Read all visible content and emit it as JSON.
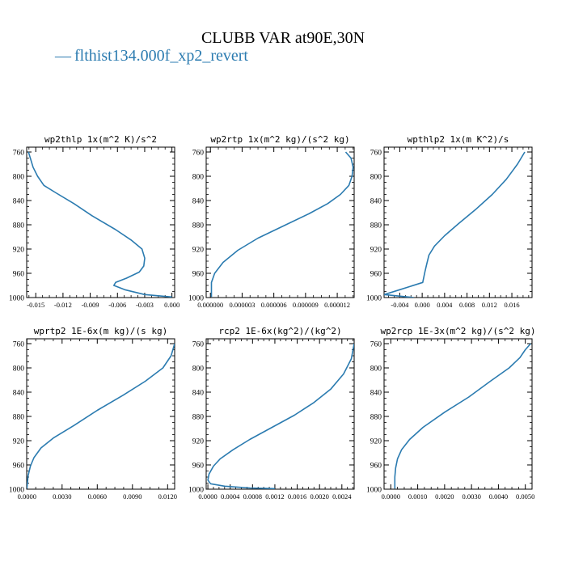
{
  "title": "CLUBB VAR at90E,30N",
  "legend": {
    "dash": "—",
    "label": "flthist134.000f_xp2_revert",
    "color": "#2b7bb0"
  },
  "chart_data": [
    {
      "type": "line",
      "title": "wp2thlp  1x(m^2 K)/s^2",
      "xlim": [
        -0.016,
        0.0003
      ],
      "ylim": [
        1000,
        752
      ],
      "xticks": [
        -0.015,
        -0.012,
        -0.009,
        -0.006,
        -0.003,
        0.0
      ],
      "xtick_labels": [
        "-0.015",
        "-0.012",
        "-0.009",
        "-0.006",
        "-0.003",
        "0.000"
      ],
      "yticks": [
        760,
        800,
        840,
        880,
        920,
        960,
        1000
      ],
      "ytick_labels": [
        "760",
        "800",
        "840",
        "880",
        "920",
        "960",
        "1000"
      ],
      "series": [
        {
          "x": [
            -0.0158,
            -0.0156,
            -0.0153,
            -0.0148,
            -0.0141,
            -0.0127,
            -0.0108,
            -0.0088,
            -0.0062,
            -0.0045,
            -0.0033,
            -0.003,
            -0.0031,
            -0.0036,
            -0.005,
            -0.0062,
            -0.0064,
            -0.0052,
            -0.003,
            0.0
          ],
          "y": [
            760,
            770,
            785,
            800,
            815,
            828,
            845,
            865,
            888,
            905,
            920,
            935,
            948,
            958,
            968,
            975,
            980,
            987,
            995,
            999
          ]
        }
      ]
    },
    {
      "type": "line",
      "title": "wp2rtp  1x(m^2 kg)/(s^2 kg)",
      "xlim": [
        -4e-07,
        1.36e-05
      ],
      "ylim": [
        1000,
        752
      ],
      "xticks": [
        0.0,
        3e-06,
        6e-06,
        9e-06,
        1.2e-05
      ],
      "xtick_labels": [
        "0.000000",
        "0.000003",
        "0.000006",
        "0.000009",
        "0.000012"
      ],
      "yticks": [
        760,
        800,
        840,
        880,
        920,
        960,
        1000
      ],
      "ytick_labels": [
        "760",
        "800",
        "840",
        "880",
        "920",
        "960",
        "1000"
      ],
      "series": [
        {
          "x": [
            1.28e-05,
            1.33e-05,
            1.35e-05,
            1.34e-05,
            1.31e-05,
            1.23e-05,
            1.11e-05,
            9.3e-06,
            6.9e-06,
            4.5e-06,
            2.6e-06,
            1.2e-06,
            4e-07,
            1e-07,
            1e-07
          ],
          "y": [
            760,
            770,
            785,
            800,
            815,
            830,
            845,
            862,
            882,
            902,
            922,
            942,
            960,
            975,
            999
          ]
        }
      ]
    },
    {
      "type": "line",
      "title": "wpthlp2  1x(m K^2)/s",
      "xlim": [
        -0.0068,
        0.0196
      ],
      "ylim": [
        1000,
        752
      ],
      "xticks": [
        -0.004,
        0.0,
        0.004,
        0.008,
        0.012,
        0.016
      ],
      "xtick_labels": [
        "-0.004",
        "0.000",
        "0.004",
        "0.008",
        "0.012",
        "0.016"
      ],
      "yticks": [
        760,
        800,
        840,
        880,
        920,
        960,
        1000
      ],
      "ytick_labels": [
        "760",
        "800",
        "840",
        "880",
        "920",
        "960",
        "1000"
      ],
      "series": [
        {
          "x": [
            0.0183,
            0.017,
            0.015,
            0.0125,
            0.0095,
            0.0065,
            0.004,
            0.0022,
            0.0012,
            0.0008,
            0.0005,
            0.0001,
            -0.004,
            -0.0068,
            -0.0015
          ],
          "y": [
            760,
            780,
            805,
            830,
            855,
            878,
            898,
            915,
            930,
            945,
            957,
            975,
            987,
            995,
            1000
          ]
        }
      ]
    },
    {
      "type": "line",
      "title": "wprtp2  1E-6x(m kg)/(s kg)",
      "xlim": [
        -2e-05,
        0.0126
      ],
      "ylim": [
        1000,
        752
      ],
      "xticks": [
        0.0,
        0.003,
        0.006,
        0.009,
        0.012
      ],
      "xtick_labels": [
        "0.0000",
        "0.0030",
        "0.0060",
        "0.0090",
        "0.0120"
      ],
      "yticks": [
        760,
        800,
        840,
        880,
        920,
        960,
        1000
      ],
      "ytick_labels": [
        "760",
        "800",
        "840",
        "880",
        "920",
        "960",
        "1000"
      ],
      "series": [
        {
          "x": [
            0.0126,
            0.0123,
            0.0116,
            0.0101,
            0.0082,
            0.006,
            0.004,
            0.0023,
            0.0012,
            0.0006,
            0.0003,
            0.0001,
            0.0
          ],
          "y": [
            760,
            780,
            800,
            822,
            845,
            870,
            895,
            915,
            932,
            948,
            962,
            978,
            999
          ]
        }
      ]
    },
    {
      "type": "line",
      "title": "rcp2  1E-6x(kg^2)/(kg^2)",
      "xlim": [
        -3e-05,
        0.00262
      ],
      "ylim": [
        1000,
        752
      ],
      "xticks": [
        0.0,
        0.0004,
        0.0008,
        0.0012,
        0.0016,
        0.002,
        0.0024
      ],
      "xtick_labels": [
        "0.0000",
        "0.0004",
        "0.0008",
        "0.0012",
        "0.0016",
        "0.0020",
        "0.0024"
      ],
      "yticks": [
        760,
        800,
        840,
        880,
        920,
        960,
        1000
      ],
      "ytick_labels": [
        "760",
        "800",
        "840",
        "880",
        "920",
        "960",
        "1000"
      ],
      "series": [
        {
          "x": [
            0.00262,
            0.00257,
            0.00243,
            0.0022,
            0.0019,
            0.00155,
            0.00115,
            0.00075,
            0.00045,
            0.00022,
            0.0001,
            2e-05,
            0.0,
            5e-05,
            0.0003,
            0.00075,
            0.0012
          ],
          "y": [
            760,
            785,
            810,
            835,
            857,
            878,
            898,
            918,
            935,
            950,
            962,
            975,
            985,
            991,
            995,
            998,
            999
          ]
        }
      ]
    },
    {
      "type": "line",
      "title": "wp2rcp  1E-3x(m^2 kg)/(s^2 kg)",
      "xlim": [
        -0.00025,
        0.00525
      ],
      "ylim": [
        1000,
        752
      ],
      "xticks": [
        0.0,
        0.001,
        0.002,
        0.003,
        0.004,
        0.005
      ],
      "xtick_labels": [
        "0.0000",
        "0.0010",
        "0.0020",
        "0.0030",
        "0.0040",
        "0.0050"
      ],
      "yticks": [
        760,
        800,
        840,
        880,
        920,
        960,
        1000
      ],
      "ytick_labels": [
        "760",
        "800",
        "840",
        "880",
        "920",
        "960",
        "1000"
      ],
      "series": [
        {
          "x": [
            0.0052,
            0.005,
            0.0048,
            0.0044,
            0.0037,
            0.0029,
            0.002,
            0.0012,
            0.0007,
            0.0004,
            0.00025,
            0.00018,
            0.00015,
            0.00015
          ],
          "y": [
            760,
            770,
            783,
            800,
            822,
            848,
            873,
            898,
            918,
            935,
            950,
            965,
            980,
            999
          ]
        }
      ]
    }
  ]
}
